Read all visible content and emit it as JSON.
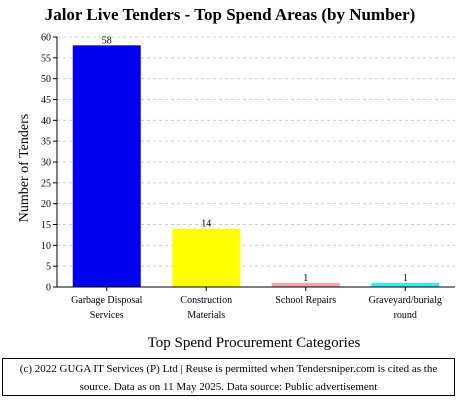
{
  "chart_data": {
    "type": "bar",
    "title": "Jalor Live Tenders - Top Spend Areas (by Number)",
    "xlabel": "Top Spend Procurement Categories",
    "ylabel": "Number of Tenders",
    "ylim": [
      0,
      60
    ],
    "yticks": [
      "0",
      "5",
      "10",
      "15",
      "20",
      "25",
      "30",
      "35",
      "40",
      "45",
      "50",
      "55",
      "60"
    ],
    "grid": true,
    "categories": [
      [
        "Garbage Disposal",
        "Services"
      ],
      [
        "Construction",
        "Materials"
      ],
      [
        "School Repairs"
      ],
      [
        "Graveyard/burialg",
        "round"
      ]
    ],
    "values": [
      58,
      14,
      1,
      1
    ],
    "data_labels": [
      "58",
      "14",
      "1",
      "1"
    ],
    "colors": [
      "#0000ee",
      "#ffff00",
      "#f4a6a6",
      "#33f0f0"
    ]
  },
  "footer": {
    "line1": "(c) 2022 GUGA IT Services (P) Ltd | Reuse is permitted when Tendersniper.com is cited as the",
    "line2": "source. Data as on 11 May 2025. Data source: Public advertisement"
  }
}
